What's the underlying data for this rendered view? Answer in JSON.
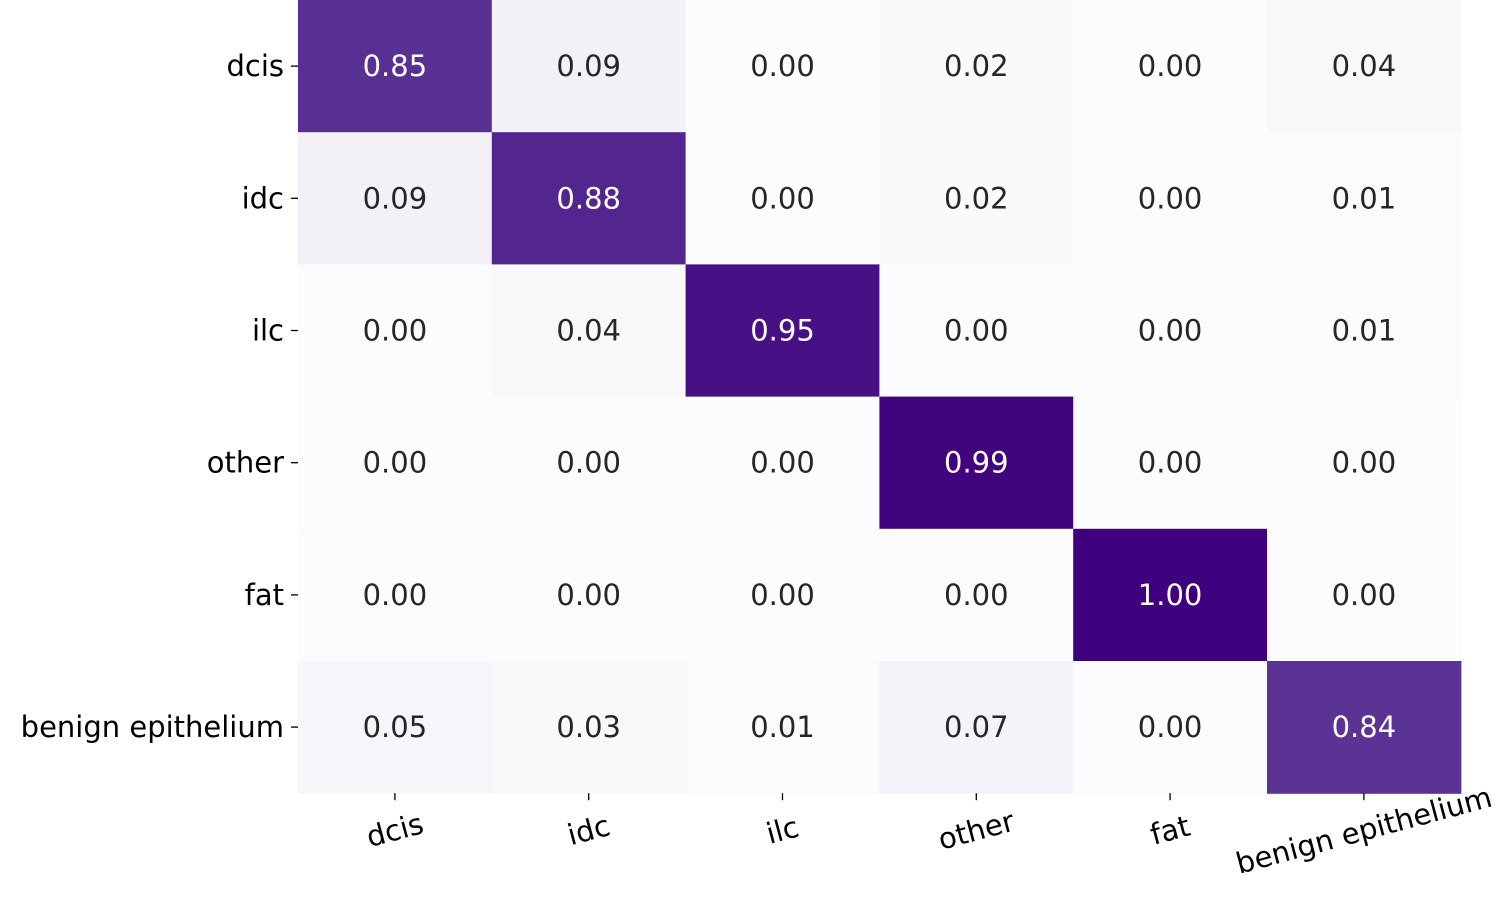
{
  "chart_data": {
    "type": "heatmap",
    "title": "",
    "xlabel": "",
    "ylabel": "",
    "row_labels": [
      "dcis",
      "idc",
      "ilc",
      "other",
      "fat",
      "benign epithelium"
    ],
    "col_labels": [
      "dcis",
      "idc",
      "ilc",
      "other",
      "fat",
      "benign epithelium"
    ],
    "values": [
      [
        0.85,
        0.09,
        0.0,
        0.02,
        0.0,
        0.04
      ],
      [
        0.09,
        0.88,
        0.0,
        0.02,
        0.0,
        0.01
      ],
      [
        0.0,
        0.04,
        0.95,
        0.0,
        0.0,
        0.01
      ],
      [
        0.0,
        0.0,
        0.0,
        0.99,
        0.0,
        0.0
      ],
      [
        0.0,
        0.0,
        0.0,
        0.0,
        1.0,
        0.0
      ],
      [
        0.05,
        0.03,
        0.01,
        0.07,
        0.0,
        0.84
      ]
    ],
    "value_range": [
      0,
      1
    ],
    "colormap": "Purples",
    "colors": {
      "low": "#fcfbfd",
      "high": "#3f007d",
      "dark_text": "#262626",
      "light_text": "#ffffff"
    }
  }
}
